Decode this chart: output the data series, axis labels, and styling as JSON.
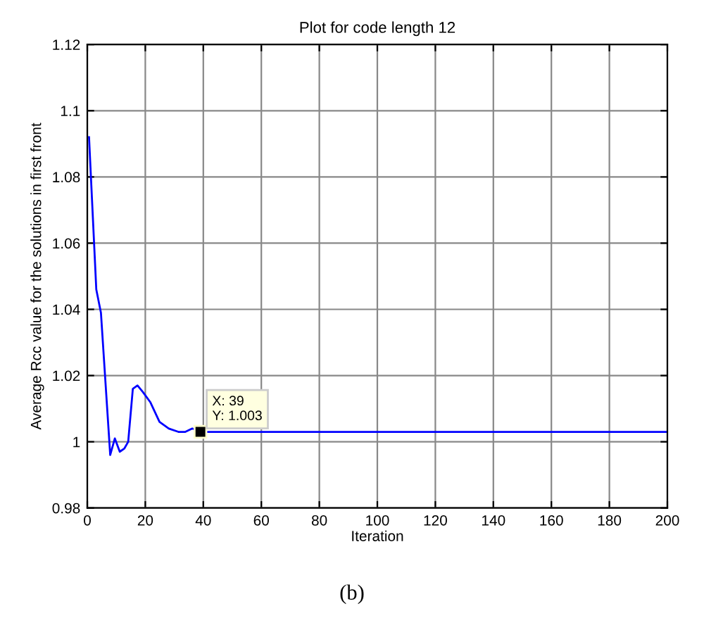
{
  "chart_data": {
    "type": "line",
    "title": "Plot for code length 12",
    "xlabel": "Iteration",
    "ylabel": "Average Rcc value for the solutions in first front",
    "x": [
      0.6,
      3.1,
      4.7,
      7.9,
      9.5,
      11.2,
      12.8,
      14.1,
      15.7,
      17.3,
      19.2,
      21.7,
      24.9,
      28.1,
      31.4,
      33.8,
      36.2,
      39,
      200
    ],
    "series": [
      {
        "color": "#0000ff",
        "values": [
          1.092,
          1.046,
          1.039,
          0.996,
          1.001,
          0.997,
          0.998,
          1.0,
          1.016,
          1.017,
          1.015,
          1.012,
          1.006,
          1.004,
          1.003,
          1.003,
          1.004,
          1.003,
          1.003
        ]
      }
    ],
    "xlim": [
      0,
      200
    ],
    "xticks": [
      0,
      20,
      40,
      60,
      80,
      100,
      120,
      140,
      160,
      180,
      200
    ],
    "ylim": [
      0.98,
      1.12
    ],
    "yticks": [
      0.98,
      1,
      1.02,
      1.04,
      1.06,
      1.08,
      1.1,
      1.12
    ],
    "grid": true,
    "marker": "none",
    "line_style": "solid",
    "annotations": [
      {
        "text": "X: 39\nY: 1.003",
        "x": 39,
        "y": 1.003
      },
      "(b)"
    ]
  }
}
